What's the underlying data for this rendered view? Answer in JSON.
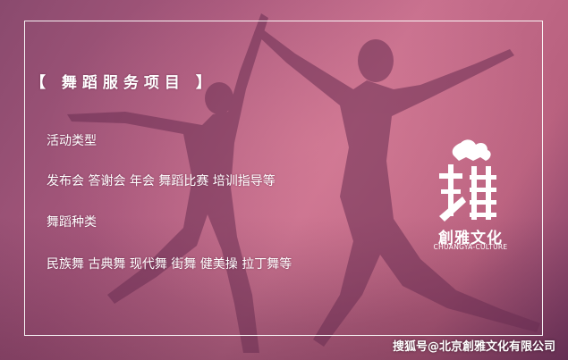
{
  "heading": "【 舞蹈服务项目 】",
  "activity_label": "活动类型",
  "activity_items": "发布会 答谢会 年会 舞蹈比赛 培训指导等",
  "dance_label": "舞蹈种类",
  "dance_items": "民族舞 古典舞 现代舞 街舞 健美操 拉丁舞等",
  "logo": {
    "name": "創雅文化",
    "subtitle": "CHUANGYA-CULTURE"
  },
  "watermark": "搜狐号@北京創雅文化有限公司",
  "colors": {
    "background": "#b8607e",
    "silhouette": "#6a2e52",
    "text": "#ffffff"
  }
}
